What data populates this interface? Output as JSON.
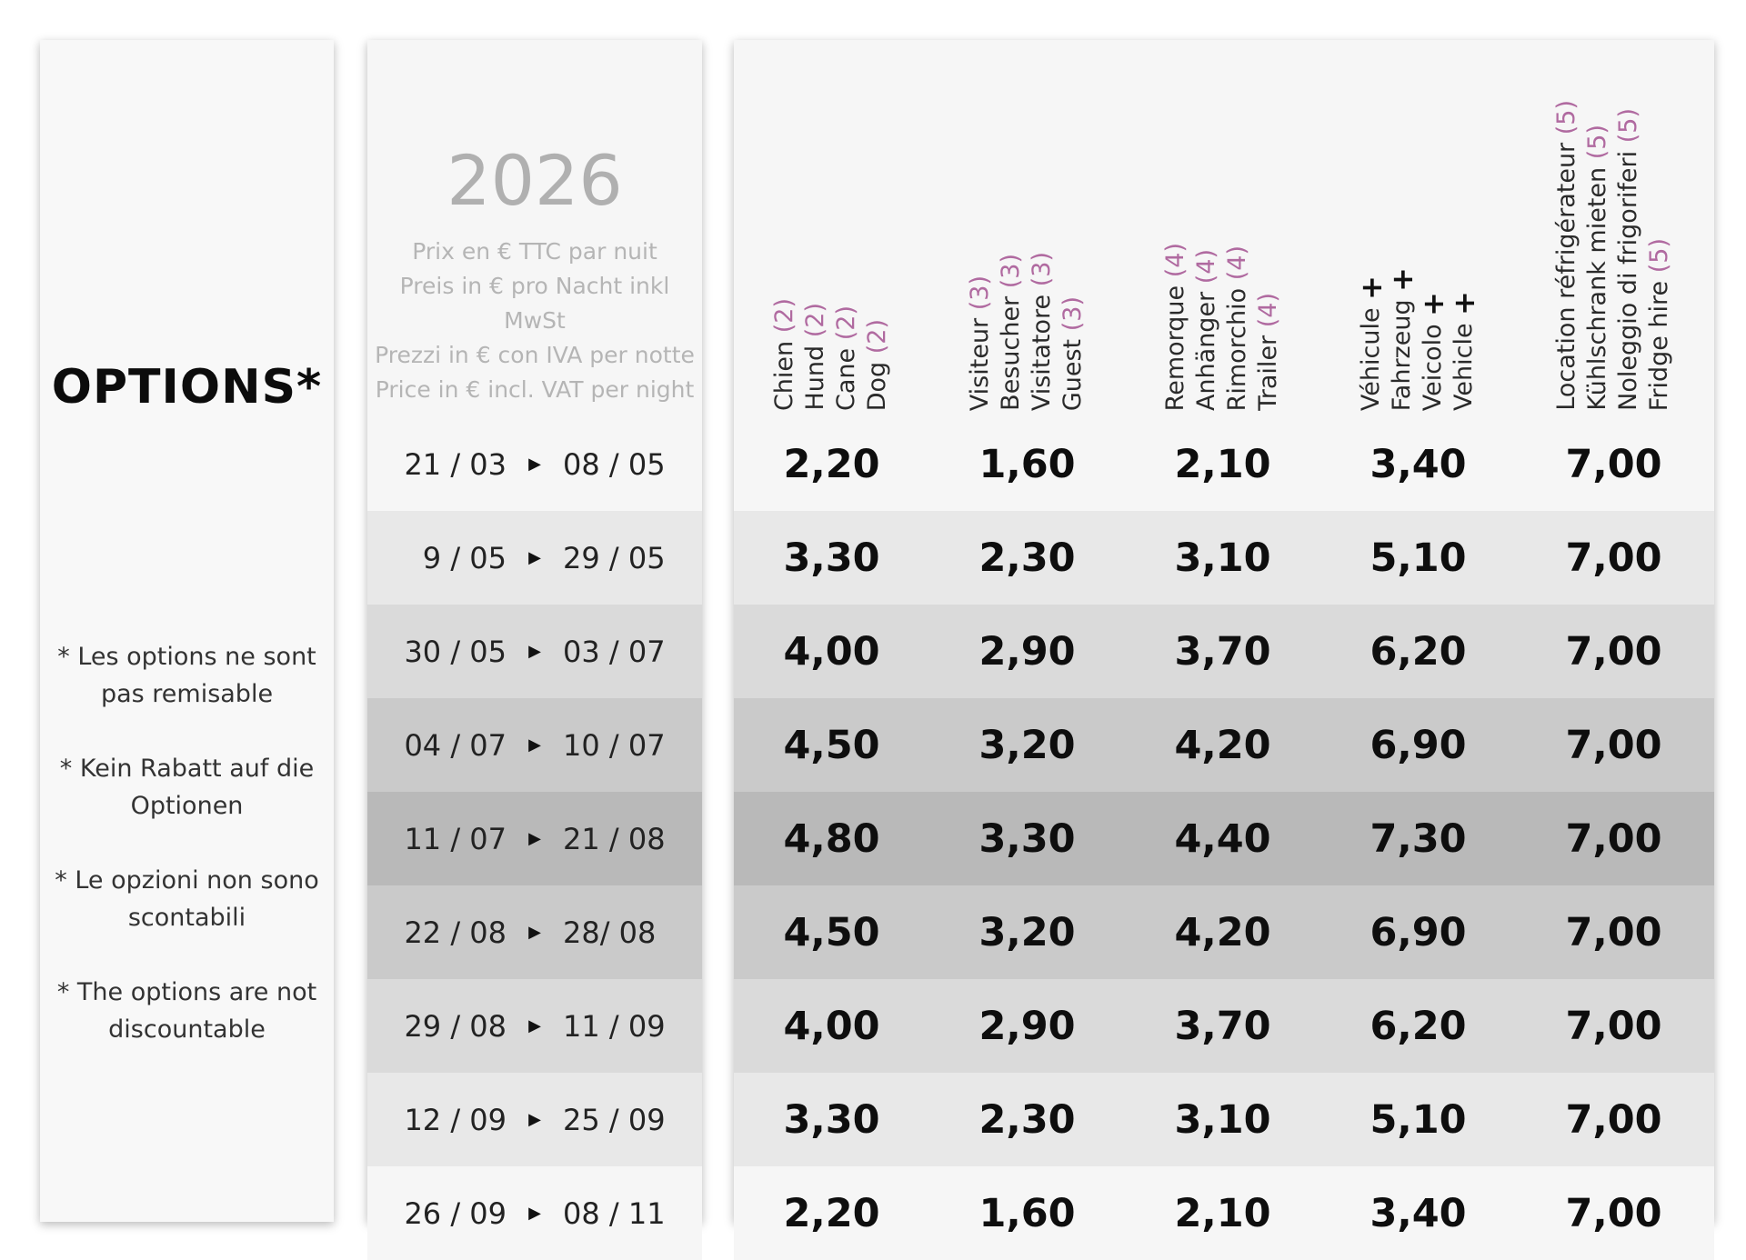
{
  "options": {
    "title": "OPTIONS*",
    "notes": [
      "* Les options ne sont pas remisable",
      "* Kein Rabatt auf die Optionen",
      "* Le opzioni non sono scontabili",
      "* The options are not discountable"
    ]
  },
  "dates_panel": {
    "year": "2026",
    "price_info": [
      "Prix en € TTC par nuit",
      "Preis in € pro Nacht inkl MwSt",
      "Prezzi in € con IVA per notte",
      "Price in € incl. VAT per night"
    ],
    "arrow": "▶"
  },
  "headers": [
    {
      "lines": [
        {
          "text": "Chien",
          "note": "(2)"
        },
        {
          "text": "Hund",
          "note": "(2)"
        },
        {
          "text": "Cane",
          "note": "(2)"
        },
        {
          "text": "Dog",
          "note": "(2)"
        }
      ]
    },
    {
      "lines": [
        {
          "text": "Visiteur",
          "note": "(3)"
        },
        {
          "text": "Besucher",
          "note": "(3)"
        },
        {
          "text": "Visitatore",
          "note": "(3)"
        },
        {
          "text": "Guest",
          "note": "(3)"
        }
      ]
    },
    {
      "lines": [
        {
          "text": "Remorque",
          "note": "(4)"
        },
        {
          "text": "Anhänger",
          "note": "(4)"
        },
        {
          "text": "Rimorchio",
          "note": "(4)"
        },
        {
          "text": "Trailer",
          "note": "(4)"
        }
      ]
    },
    {
      "lines": [
        {
          "text": "Véhicule",
          "plus": "+"
        },
        {
          "text": "Fahrzeug",
          "plus": "+"
        },
        {
          "text": "Veicolo",
          "plus": "+"
        },
        {
          "text": "Vehicle",
          "plus": "+"
        }
      ]
    },
    {
      "lines": [
        {
          "text": "Location réfrigérateur",
          "note": "(5)"
        },
        {
          "text": "Kühlschrank mieten",
          "note": "(5)"
        },
        {
          "text": "Noleggio di frigoriferi",
          "note": "(5)"
        },
        {
          "text": "Fridge hire",
          "note": "(5)"
        }
      ]
    }
  ],
  "rows": [
    {
      "from": "21 / 03",
      "to": "08 / 05",
      "bg": "#f6f6f6",
      "prices": [
        "2,20",
        "1,60",
        "2,10",
        "3,40",
        "7,00"
      ]
    },
    {
      "from": "9 / 05",
      "to": "29 / 05",
      "bg": "#e8e8e8",
      "prices": [
        "3,30",
        "2,30",
        "3,10",
        "5,10",
        "7,00"
      ]
    },
    {
      "from": "30 / 05",
      "to": "03 / 07",
      "bg": "#dadada",
      "prices": [
        "4,00",
        "2,90",
        "3,70",
        "6,20",
        "7,00"
      ]
    },
    {
      "from": "04 / 07",
      "to": "10 / 07",
      "bg": "#cacaca",
      "prices": [
        "4,50",
        "3,20",
        "4,20",
        "6,90",
        "7,00"
      ]
    },
    {
      "from": "11 / 07",
      "to": "21 / 08",
      "bg": "#b9b9b9",
      "prices": [
        "4,80",
        "3,30",
        "4,40",
        "7,30",
        "7,00"
      ]
    },
    {
      "from": "22 / 08",
      "to": "28/ 08",
      "bg": "#cacaca",
      "prices": [
        "4,50",
        "3,20",
        "4,20",
        "6,90",
        "7,00"
      ]
    },
    {
      "from": "29 / 08",
      "to": "11 / 09",
      "bg": "#dadada",
      "prices": [
        "4,00",
        "2,90",
        "3,70",
        "6,20",
        "7,00"
      ]
    },
    {
      "from": "12 / 09",
      "to": "25 / 09",
      "bg": "#e8e8e8",
      "prices": [
        "3,30",
        "2,30",
        "3,10",
        "5,10",
        "7,00"
      ]
    },
    {
      "from": "26 / 09",
      "to": "08 / 11",
      "bg": "#f6f6f6",
      "prices": [
        "2,20",
        "1,60",
        "2,10",
        "3,40",
        "7,00"
      ]
    }
  ]
}
